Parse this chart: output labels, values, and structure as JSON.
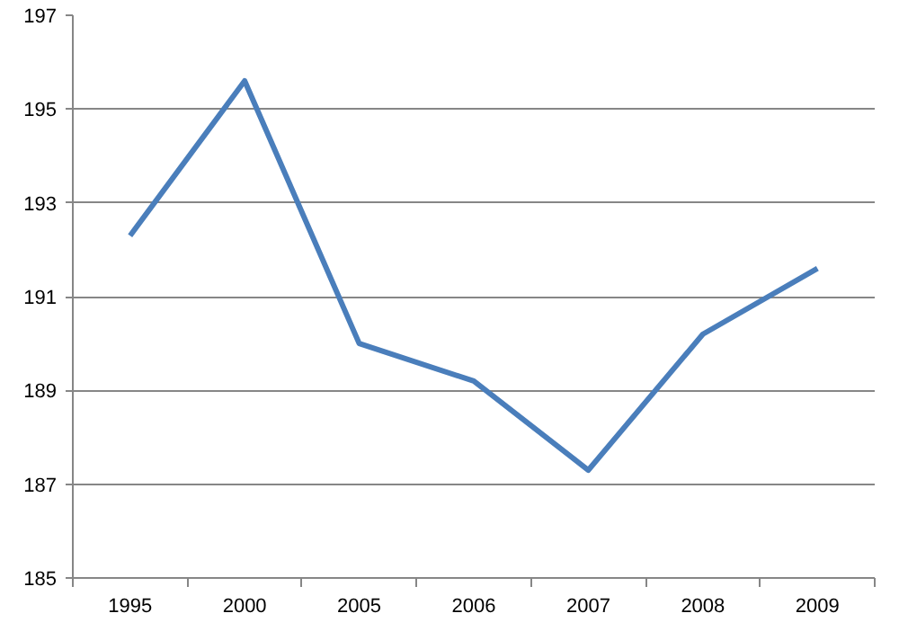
{
  "chart_data": {
    "type": "line",
    "categories": [
      "1995",
      "2000",
      "2005",
      "2006",
      "2007",
      "2008",
      "2009"
    ],
    "series": [
      {
        "color": "#4a7ebb",
        "values": [
          192.3,
          195.6,
          190.0,
          189.2,
          187.3,
          190.2,
          191.6
        ]
      }
    ],
    "ylim": [
      185,
      197
    ],
    "yticks": [
      185,
      187,
      189,
      191,
      193,
      195,
      197
    ],
    "grid": "y",
    "marker": "none",
    "line_style": "solid"
  }
}
